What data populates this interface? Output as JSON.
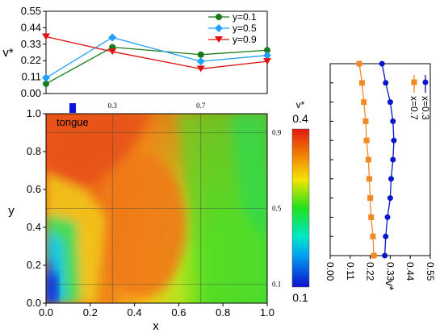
{
  "chart_data": [
    {
      "type": "line",
      "ylabel": "v*",
      "ylim": [
        0.0,
        0.55
      ],
      "xlim": [
        0.0,
        1.0
      ],
      "yticks": [
        "0.00",
        "0.11",
        "0.22",
        "0.33",
        "0.44",
        "0.55"
      ],
      "x": [
        0.0,
        0.3,
        0.7,
        1.0
      ],
      "legend": "top-right",
      "series": [
        {
          "name": "y=0.1",
          "color": "#1a7a1a",
          "marker": "circle",
          "values": [
            0.065,
            0.31,
            0.26,
            0.29
          ]
        },
        {
          "name": "y=0.5",
          "color": "#1ea0ff",
          "marker": "diamond",
          "values": [
            0.105,
            0.375,
            0.215,
            0.255
          ]
        },
        {
          "name": "y=0.9",
          "color": "#e01010",
          "marker": "triangle",
          "values": [
            0.38,
            0.28,
            0.165,
            0.215
          ]
        }
      ]
    },
    {
      "type": "heatmap",
      "xlabel": "x",
      "ylabel": "y",
      "xlim": [
        0.0,
        1.0
      ],
      "ylim": [
        0.0,
        1.0
      ],
      "xticks": [
        "0.0",
        "0.2",
        "0.4",
        "0.6",
        "0.8",
        "1.0"
      ],
      "yticks": [
        "0.0",
        "0.2",
        "0.4",
        "0.6",
        "0.8",
        "1.0"
      ],
      "top_ticks": [
        "0.3",
        "0.7"
      ],
      "right_ticks": [
        "0.1",
        "0.5",
        "0.9"
      ],
      "annotation": "tongue",
      "colorbar": {
        "title": "v*",
        "max_label": "0.4",
        "min_label": "0.1",
        "range": [
          0.1,
          0.4
        ]
      },
      "reference_lines": {
        "x": [
          0.3,
          0.7
        ],
        "y": [
          0.1,
          0.5,
          0.9
        ]
      }
    },
    {
      "type": "line",
      "orientation": "vertical-profile",
      "xlabel": "v*",
      "xlim": [
        0.0,
        0.55
      ],
      "xticks": [
        "0.00",
        "0.11",
        "0.22",
        "0.33",
        "0.44",
        "0.55"
      ],
      "legend": "top-right",
      "y": [
        1.0,
        0.9,
        0.8,
        0.7,
        0.6,
        0.5,
        0.4,
        0.3,
        0.2,
        0.1,
        0.0
      ],
      "series": [
        {
          "name": "x=0.3",
          "color": "#0a14c8",
          "marker": "circle",
          "values": [
            0.285,
            0.305,
            0.33,
            0.345,
            0.35,
            0.345,
            0.335,
            0.33,
            0.315,
            0.305,
            0.3
          ]
        },
        {
          "name": "x=0.7",
          "color": "#f08a24",
          "marker": "square",
          "values": [
            0.16,
            0.175,
            0.185,
            0.195,
            0.2,
            0.21,
            0.215,
            0.22,
            0.225,
            0.235,
            0.24
          ]
        }
      ]
    }
  ]
}
